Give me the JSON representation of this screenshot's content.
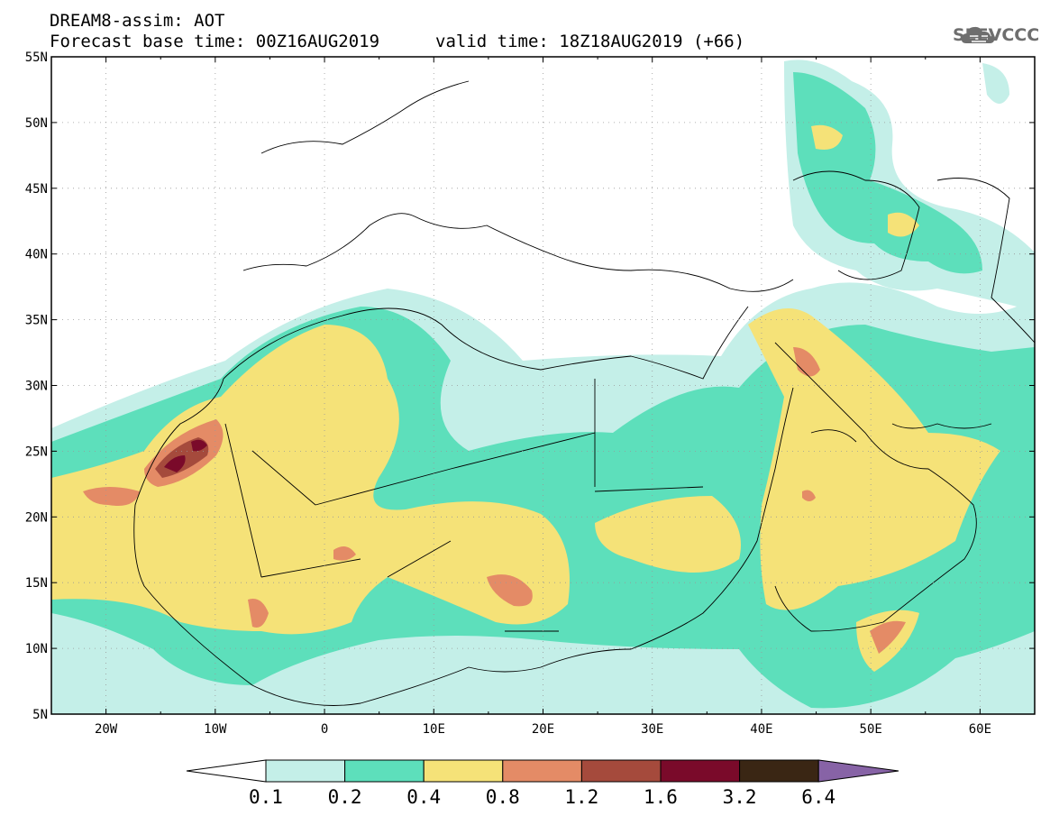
{
  "header": {
    "line1": "DREAM8-assim: AOT",
    "base_time": "Forecast base time: 00Z16AUG2019",
    "valid_time": "valid time: 18Z18AUG2019 (+66)"
  },
  "logo": {
    "text": "SEEVCCC",
    "icon": "cloud-icon"
  },
  "map": {
    "lon_range": [
      -25,
      65
    ],
    "lat_range": [
      5,
      55
    ],
    "lat_ticks": [
      "55N",
      "50N",
      "45N",
      "40N",
      "35N",
      "30N",
      "25N",
      "20N",
      "15N",
      "10N",
      "5N"
    ],
    "lon_ticks": [
      "20W",
      "10W",
      "0",
      "10E",
      "20E",
      "30E",
      "40E",
      "50E",
      "60E"
    ],
    "grid": true
  },
  "colorbar": {
    "labels": [
      "0.1",
      "0.2",
      "0.4",
      "0.8",
      "1.2",
      "1.6",
      "3.2",
      "6.4"
    ],
    "colors": [
      "#ffffff",
      "#c4efe8",
      "#5ddfbb",
      "#f5e278",
      "#e48b66",
      "#a54a3c",
      "#7a0a2a",
      "#3a2614",
      "#8763a6"
    ]
  }
}
